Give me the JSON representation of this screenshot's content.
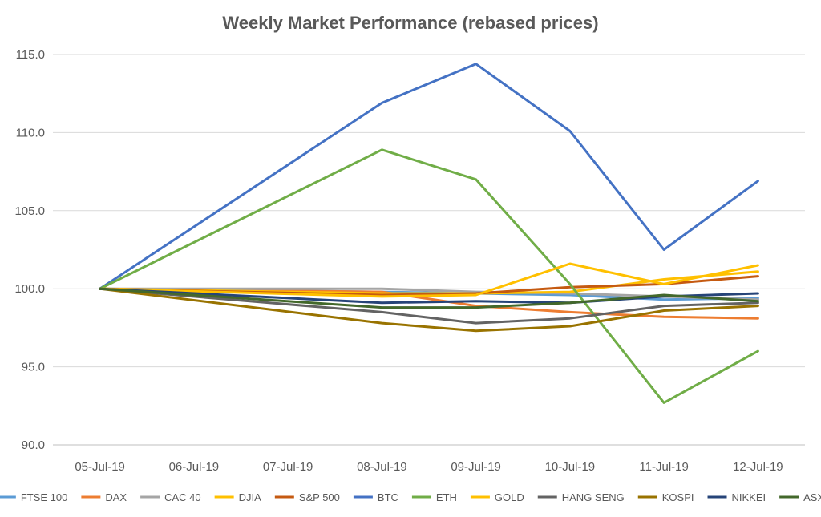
{
  "chart_data": {
    "type": "line",
    "title": "Weekly Market Performance (rebased prices)",
    "xlabel": "",
    "ylabel": "",
    "ylim": [
      90,
      115
    ],
    "y_ticks": [
      "90.0",
      "95.0",
      "100.0",
      "105.0",
      "110.0",
      "115.0"
    ],
    "categories": [
      "05-Jul-19",
      "06-Jul-19",
      "07-Jul-19",
      "08-Jul-19",
      "09-Jul-19",
      "10-Jul-19",
      "11-Jul-19",
      "12-Jul-19"
    ],
    "grid": "horizontal",
    "legend_position": "bottom",
    "series": [
      {
        "name": "FTSE 100",
        "color": "#5B9BD5",
        "points": [
          [
            0,
            100.0
          ],
          [
            3,
            99.8
          ],
          [
            4,
            99.7
          ],
          [
            5,
            99.6
          ],
          [
            6,
            99.3
          ],
          [
            7,
            99.4
          ]
        ]
      },
      {
        "name": "DAX",
        "color": "#ED7D31",
        "points": [
          [
            0,
            100.0
          ],
          [
            3,
            99.8
          ],
          [
            4,
            98.9
          ],
          [
            5,
            98.5
          ],
          [
            6,
            98.2
          ],
          [
            7,
            98.1
          ]
        ]
      },
      {
        "name": "CAC 40",
        "color": "#A5A5A5",
        "points": [
          [
            0,
            100.0
          ],
          [
            3,
            100.0
          ],
          [
            4,
            99.8
          ],
          [
            5,
            99.7
          ],
          [
            6,
            99.5
          ],
          [
            7,
            99.3
          ]
        ]
      },
      {
        "name": "DJIA",
        "color": "#FFC000",
        "points": [
          [
            0,
            100.0
          ],
          [
            3,
            99.7
          ],
          [
            4,
            99.7
          ],
          [
            5,
            99.8
          ],
          [
            6,
            100.6
          ],
          [
            7,
            101.1
          ]
        ]
      },
      {
        "name": "S&P 500",
        "color": "#C55A11",
        "points": [
          [
            0,
            100.0
          ],
          [
            3,
            99.6
          ],
          [
            4,
            99.7
          ],
          [
            5,
            100.1
          ],
          [
            6,
            100.3
          ],
          [
            7,
            100.8
          ]
        ]
      },
      {
        "name": "BTC",
        "color": "#4472C4",
        "points": [
          [
            0,
            100.0
          ],
          [
            3,
            111.9
          ],
          [
            4,
            114.4
          ],
          [
            5,
            110.1
          ],
          [
            6,
            102.5
          ],
          [
            7,
            106.9
          ]
        ]
      },
      {
        "name": "ETH",
        "color": "#70AD47",
        "points": [
          [
            0,
            100.0
          ],
          [
            3,
            108.9
          ],
          [
            4,
            107.0
          ],
          [
            5,
            100.3
          ],
          [
            6,
            92.7
          ],
          [
            7,
            96.0
          ]
        ]
      },
      {
        "name": "GOLD",
        "color": "#FFC000",
        "points": [
          [
            0,
            100.0
          ],
          [
            3,
            99.5
          ],
          [
            4,
            99.6
          ],
          [
            5,
            101.6
          ],
          [
            6,
            100.3
          ],
          [
            7,
            101.5
          ]
        ]
      },
      {
        "name": "HANG SENG",
        "color": "#636363",
        "points": [
          [
            0,
            100.0
          ],
          [
            3,
            98.5
          ],
          [
            4,
            97.8
          ],
          [
            5,
            98.1
          ],
          [
            6,
            98.9
          ],
          [
            7,
            99.1
          ]
        ]
      },
      {
        "name": "KOSPI",
        "color": "#997300",
        "points": [
          [
            0,
            100.0
          ],
          [
            3,
            97.8
          ],
          [
            4,
            97.3
          ],
          [
            5,
            97.6
          ],
          [
            6,
            98.6
          ],
          [
            7,
            98.9
          ]
        ]
      },
      {
        "name": "NIKKEI",
        "color": "#264478",
        "points": [
          [
            0,
            100.0
          ],
          [
            3,
            99.1
          ],
          [
            4,
            99.2
          ],
          [
            5,
            99.1
          ],
          [
            6,
            99.5
          ],
          [
            7,
            99.7
          ]
        ]
      },
      {
        "name": "ASX",
        "color": "#43682B",
        "points": [
          [
            0,
            100.0
          ],
          [
            3,
            98.8
          ],
          [
            4,
            98.8
          ],
          [
            5,
            99.1
          ],
          [
            6,
            99.6
          ],
          [
            7,
            99.2
          ]
        ]
      }
    ]
  }
}
